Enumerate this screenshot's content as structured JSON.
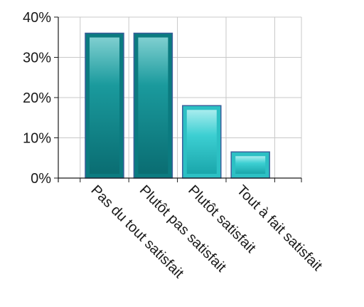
{
  "chart_data": {
    "type": "bar",
    "categories": [
      "Pas du tout satisfait",
      "Plutôt pas satisfait",
      "Plutôt satisfait",
      "Tout à fait satisfait"
    ],
    "values": [
      36,
      36,
      18,
      6.5
    ],
    "ylim": [
      0,
      40
    ],
    "yticks": [
      "0%",
      "10%",
      "20%",
      "30%",
      "40%"
    ],
    "grid": true,
    "colors": {
      "dark": "#0b7b80",
      "light": "#2cc0c4",
      "edge": "#3a5f9a",
      "grid": "#c8c8c8"
    },
    "bar_shades": [
      "dark",
      "dark",
      "light",
      "light"
    ]
  }
}
